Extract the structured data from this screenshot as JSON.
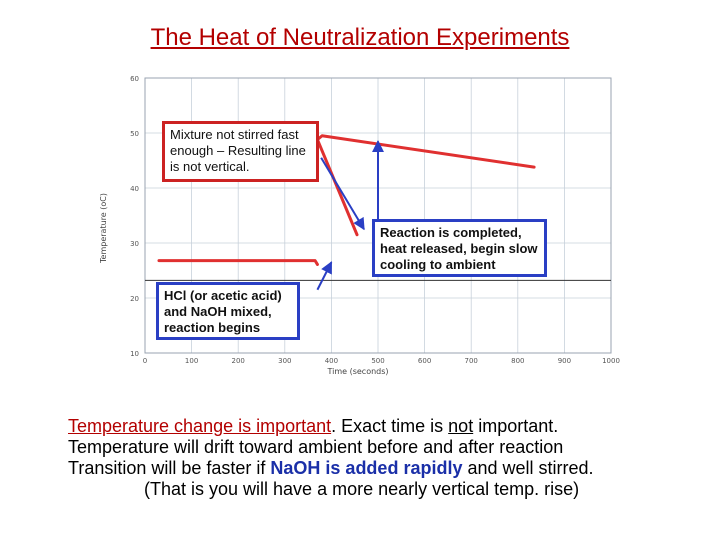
{
  "title": "The Heat of Neutralization Experiments",
  "chart_data": {
    "type": "line",
    "xlabel": "Time (seconds)",
    "ylabel": "Temperature (oC)",
    "xlim": [
      0,
      1000
    ],
    "ylim": [
      10,
      60
    ],
    "x_ticks": [
      "0",
      "100",
      "200",
      "300",
      "400",
      "500",
      "600",
      "700",
      "800",
      "900",
      "1000"
    ],
    "y_ticks": [
      "10",
      "20",
      "30",
      "40",
      "50",
      "60"
    ],
    "series": [
      {
        "values": [
          [
            30,
            26.8
          ],
          [
            365,
            26.8
          ],
          [
            370,
            26.1
          ]
        ],
        "color": "#e03030"
      },
      {
        "values": [
          [
            370,
            48.8
          ],
          [
            380,
            49.5
          ],
          [
            835,
            43.8
          ]
        ],
        "color": "#e03030"
      },
      {
        "values": [
          [
            370,
            48.8
          ],
          [
            455,
            31.5
          ]
        ],
        "color": "#e03030"
      }
    ],
    "ambient_line": 23.2,
    "arrows": [
      {
        "from": [
          500,
          31.3
        ],
        "to": [
          500,
          48.5
        ],
        "color": "#2a3fc4"
      },
      {
        "from": [
          370,
          21.5
        ],
        "to": [
          400,
          26.5
        ],
        "color": "#2a3fc4"
      },
      {
        "from": [
          378,
          45.5
        ],
        "to": [
          470,
          32.5
        ],
        "color": "#2a3fc4"
      }
    ]
  },
  "callouts": {
    "stir": "Mixture not stirred fast enough – Resulting line is not vertical.",
    "completed": "Reaction is completed, heat released, begin slow cooling to ambient",
    "mixed": "HCl (or acetic acid) and NaOH mixed, reaction begins"
  },
  "text": {
    "line1_a": "Temperature change is important",
    "line1_b": ".  Exact time is ",
    "line1_c": "not",
    "line1_d": " important.",
    "line2": "Temperature will drift toward ambient before and after reaction",
    "line3_a": "Transition will be faster if ",
    "line3_b": "NaOH is added rapidly",
    "line3_c": " and well stirred.",
    "line4": "(That is you will have a more nearly vertical temp. rise)"
  }
}
